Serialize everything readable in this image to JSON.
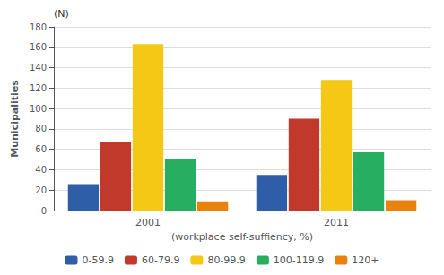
{
  "chart_data": {
    "type": "bar",
    "categories": [
      "2001",
      "2011"
    ],
    "series": [
      {
        "name": "0-59.9",
        "color": "#2E5EA8",
        "values": [
          26,
          35
        ]
      },
      {
        "name": "60-79.9",
        "color": "#C0392B",
        "values": [
          67,
          90
        ]
      },
      {
        "name": "80-99.9",
        "color": "#F4C815",
        "values": [
          163,
          128
        ]
      },
      {
        "name": "100-119.9",
        "color": "#27AE60",
        "values": [
          51,
          57
        ]
      },
      {
        "name": "120+",
        "color": "#E8820C",
        "values": [
          9,
          10
        ]
      }
    ],
    "xlabel": "(workplace self-suffiency, %)",
    "ylabel": "Municipalities",
    "annotations": [
      "(N)"
    ],
    "ylim": [
      0,
      180
    ],
    "yticks": [
      0,
      20,
      40,
      60,
      80,
      100,
      120,
      140,
      160,
      180
    ],
    "grid": true,
    "legend": "bottom"
  }
}
